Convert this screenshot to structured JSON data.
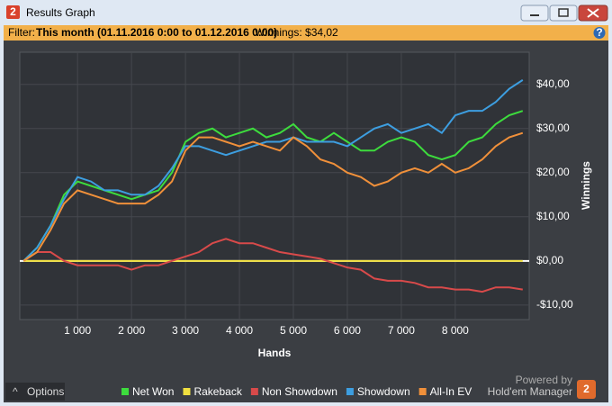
{
  "window": {
    "title": "Results Graph",
    "filter_label": "Filter:",
    "filter_value": "This month (01.11.2016 0:00 to 01.12.2016 0:00)",
    "winnings": "Winnings: $34,02",
    "options": "Options",
    "powered_by": "Powered by",
    "brand": "Hold'em Manager"
  },
  "chart_data": {
    "type": "line",
    "x_label": "Hands",
    "y_label": "Winnings",
    "x": [
      0,
      250,
      500,
      750,
      1000,
      1250,
      1500,
      1750,
      2000,
      2250,
      2500,
      2750,
      3000,
      3250,
      3500,
      3750,
      4000,
      4250,
      4500,
      4750,
      5000,
      5250,
      5500,
      5750,
      6000,
      6250,
      6500,
      6750,
      7000,
      7250,
      7500,
      7750,
      8000,
      8250,
      8500,
      8750,
      9000,
      9250
    ],
    "xlim": [
      -70,
      9370
    ],
    "xticks": [
      {
        "value": 1000,
        "label": "1 000"
      },
      {
        "value": 2000,
        "label": "2 000"
      },
      {
        "value": 3000,
        "label": "3 000"
      },
      {
        "value": 4000,
        "label": "4 000"
      },
      {
        "value": 5000,
        "label": "5 000"
      },
      {
        "value": 6000,
        "label": "6 000"
      },
      {
        "value": 7000,
        "label": "7 000"
      },
      {
        "value": 8000,
        "label": "8 000"
      }
    ],
    "ylim": [
      -13.3,
      47.3
    ],
    "yticks": [
      {
        "value": -10,
        "label": "-$10,00"
      },
      {
        "value": 0,
        "label": "$0,00"
      },
      {
        "value": 10,
        "label": "$10,00"
      },
      {
        "value": 20,
        "label": "$20,00"
      },
      {
        "value": 30,
        "label": "$30,00"
      },
      {
        "value": 40,
        "label": "$40,00"
      }
    ],
    "grid": true,
    "series": [
      {
        "name": "Net Won",
        "color": "#3ddc3d",
        "values": [
          0,
          3,
          8,
          15,
          18,
          17,
          16,
          15,
          14,
          15,
          16,
          20,
          27,
          29,
          30,
          28,
          29,
          30,
          28,
          29,
          31,
          28,
          27,
          29,
          27,
          25,
          25,
          27,
          28,
          27,
          24,
          23,
          24,
          27,
          28,
          31,
          33,
          34
        ]
      },
      {
        "name": "Rakeback",
        "color": "#f0e040",
        "values": [
          0,
          0,
          0,
          0,
          0,
          0,
          0,
          0,
          0,
          0,
          0,
          0,
          0,
          0,
          0,
          0,
          0,
          0,
          0,
          0,
          0,
          0,
          0,
          0,
          0,
          0,
          0,
          0,
          0,
          0,
          0,
          0,
          0,
          0,
          0,
          0,
          0,
          0
        ]
      },
      {
        "name": "Non Showdown",
        "color": "#d84a4a",
        "values": [
          0,
          2,
          2,
          0,
          -1,
          -1,
          -1,
          -1,
          -2,
          -1,
          -1,
          0,
          1,
          2,
          4,
          5,
          4,
          4,
          3,
          2,
          1.5,
          1,
          0.5,
          -0.5,
          -1.5,
          -2,
          -4,
          -4.5,
          -4.5,
          -5,
          -6,
          -6,
          -6.5,
          -6.5,
          -7,
          -6,
          -6,
          -6.5
        ]
      },
      {
        "name": "Showdown",
        "color": "#3d9ee0",
        "values": [
          0,
          3,
          8,
          14,
          19,
          18,
          16,
          16,
          15,
          15,
          17,
          21,
          26,
          26,
          25,
          24,
          25,
          26,
          27,
          27,
          28,
          27,
          27,
          27,
          26,
          28,
          30,
          31,
          29,
          30,
          31,
          29,
          33,
          34,
          34,
          36,
          39,
          41
        ]
      },
      {
        "name": "All-In EV",
        "color": "#f0903a",
        "values": [
          0,
          2,
          7,
          13,
          16,
          15,
          14,
          13,
          13,
          13,
          15,
          18,
          25,
          28,
          28,
          27,
          26,
          27,
          26,
          25,
          28,
          26,
          23,
          22,
          20,
          19,
          17,
          18,
          20,
          21,
          20,
          22,
          20,
          21,
          23,
          26,
          28,
          29
        ]
      }
    ]
  }
}
